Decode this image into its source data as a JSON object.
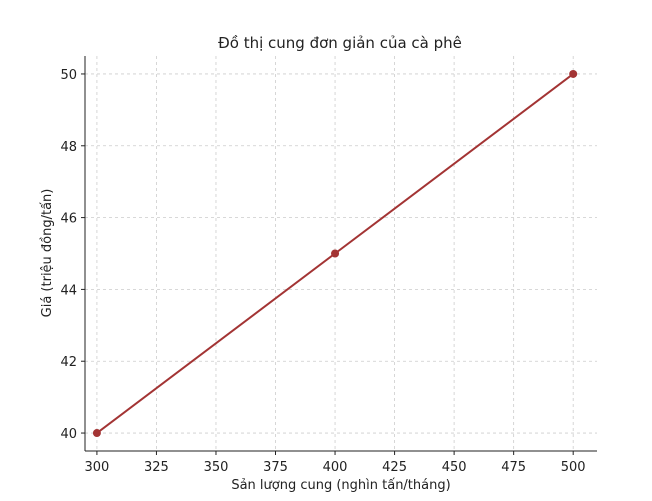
{
  "chart_data": {
    "type": "line",
    "title": "Đồ thị cung đơn giản của cà phê",
    "xlabel": "Sản lượng cung (nghìn tấn/tháng)",
    "ylabel": "Giá (triệu đồng/tấn)",
    "x": [
      300,
      400,
      500
    ],
    "series": [
      {
        "values": [
          40,
          45,
          50
        ],
        "color": "#a33434",
        "marker": "circle"
      }
    ],
    "xlim": [
      295,
      510
    ],
    "ylim": [
      39.5,
      50.5
    ],
    "xticks": [
      300,
      325,
      350,
      375,
      400,
      425,
      450,
      475,
      500
    ],
    "yticks": [
      40,
      42,
      44,
      46,
      48,
      50
    ],
    "grid": true,
    "grid_style": "dashed",
    "grid_color": "#cccccc",
    "axis_color": "#222222"
  }
}
